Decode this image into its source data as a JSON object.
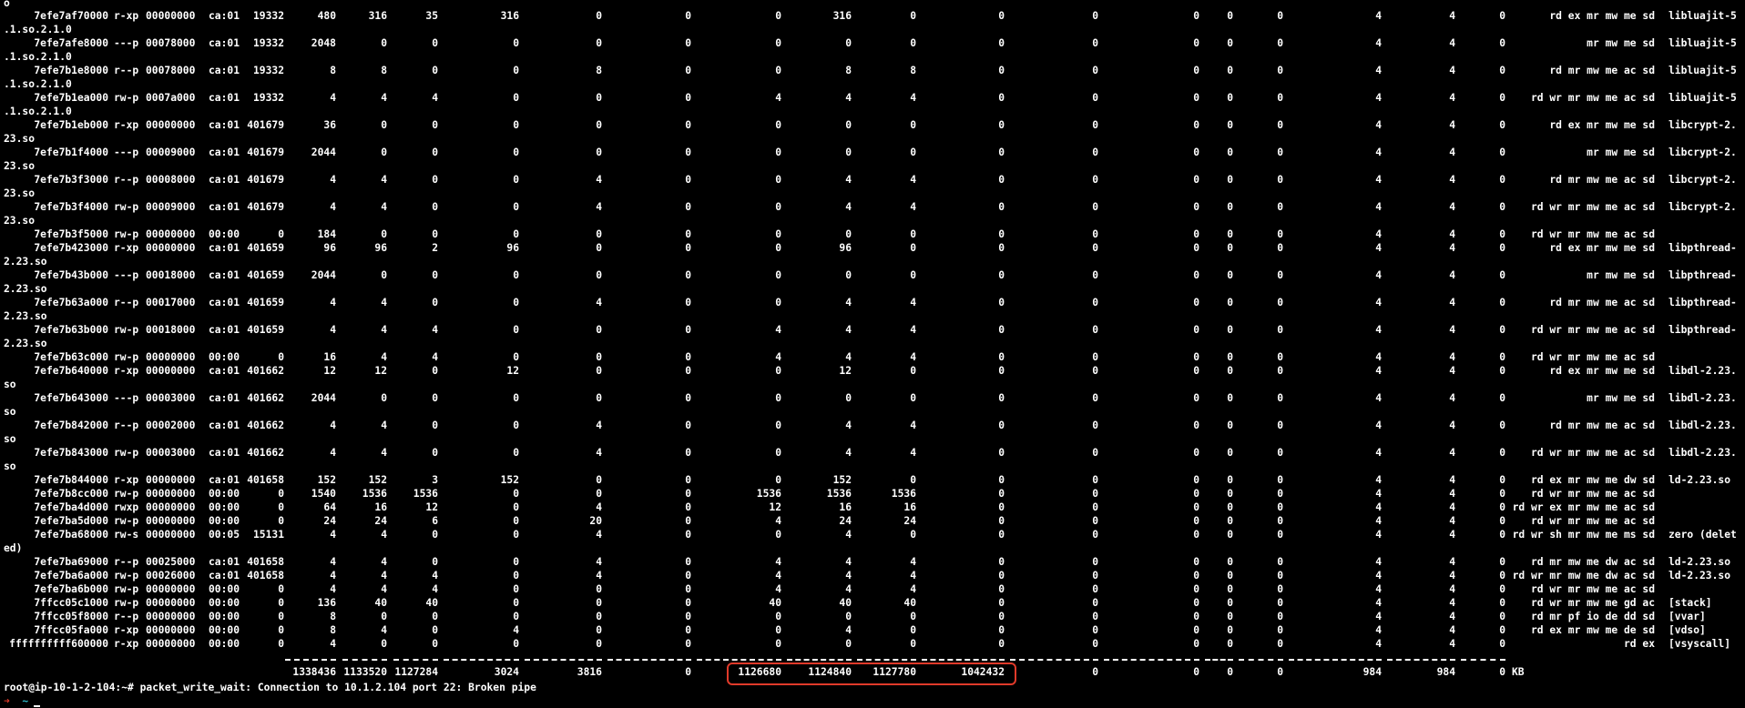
{
  "top_fragment": "o",
  "rows": [
    {
      "c": [
        "7efe7af70000",
        "r-xp",
        "00000000",
        "ca:01",
        "19332",
        "480",
        "316",
        "35",
        "316",
        "0",
        "0",
        "0",
        "316",
        "0",
        "0",
        "0",
        "0",
        "0",
        "0",
        "4",
        "4",
        "0",
        "rd ex mr mw me sd",
        "libluajit-5"
      ],
      "wrap": ".1.so.2.1.0"
    },
    {
      "c": [
        "7efe7afe8000",
        "---p",
        "00078000",
        "ca:01",
        "19332",
        "2048",
        "0",
        "0",
        "0",
        "0",
        "0",
        "0",
        "0",
        "0",
        "0",
        "0",
        "0",
        "0",
        "0",
        "4",
        "4",
        "0",
        "mr mw me sd",
        "libluajit-5"
      ],
      "wrap": ".1.so.2.1.0"
    },
    {
      "c": [
        "7efe7b1e8000",
        "r--p",
        "00078000",
        "ca:01",
        "19332",
        "8",
        "8",
        "0",
        "0",
        "8",
        "0",
        "0",
        "8",
        "8",
        "0",
        "0",
        "0",
        "0",
        "0",
        "4",
        "4",
        "0",
        "rd mr mw me ac sd",
        "libluajit-5"
      ],
      "wrap": ".1.so.2.1.0"
    },
    {
      "c": [
        "7efe7b1ea000",
        "rw-p",
        "0007a000",
        "ca:01",
        "19332",
        "4",
        "4",
        "4",
        "0",
        "0",
        "0",
        "4",
        "4",
        "4",
        "0",
        "0",
        "0",
        "0",
        "0",
        "4",
        "4",
        "0",
        "rd wr mr mw me ac sd",
        "libluajit-5"
      ],
      "wrap": ".1.so.2.1.0"
    },
    {
      "c": [
        "7efe7b1eb000",
        "r-xp",
        "00000000",
        "ca:01",
        "401679",
        "36",
        "0",
        "0",
        "0",
        "0",
        "0",
        "0",
        "0",
        "0",
        "0",
        "0",
        "0",
        "0",
        "0",
        "4",
        "4",
        "0",
        "rd ex mr mw me sd",
        "libcrypt-2."
      ],
      "wrap": "23.so"
    },
    {
      "c": [
        "7efe7b1f4000",
        "---p",
        "00009000",
        "ca:01",
        "401679",
        "2044",
        "0",
        "0",
        "0",
        "0",
        "0",
        "0",
        "0",
        "0",
        "0",
        "0",
        "0",
        "0",
        "0",
        "4",
        "4",
        "0",
        "mr mw me sd",
        "libcrypt-2."
      ],
      "wrap": "23.so"
    },
    {
      "c": [
        "7efe7b3f3000",
        "r--p",
        "00008000",
        "ca:01",
        "401679",
        "4",
        "4",
        "0",
        "0",
        "4",
        "0",
        "0",
        "4",
        "4",
        "0",
        "0",
        "0",
        "0",
        "0",
        "4",
        "4",
        "0",
        "rd mr mw me ac sd",
        "libcrypt-2."
      ],
      "wrap": "23.so"
    },
    {
      "c": [
        "7efe7b3f4000",
        "rw-p",
        "00009000",
        "ca:01",
        "401679",
        "4",
        "4",
        "0",
        "0",
        "4",
        "0",
        "0",
        "4",
        "4",
        "0",
        "0",
        "0",
        "0",
        "0",
        "4",
        "4",
        "0",
        "rd wr mr mw me ac sd",
        "libcrypt-2."
      ],
      "wrap": "23.so"
    },
    {
      "c": [
        "7efe7b3f5000",
        "rw-p",
        "00000000",
        "00:00",
        "0",
        "184",
        "0",
        "0",
        "0",
        "0",
        "0",
        "0",
        "0",
        "0",
        "0",
        "0",
        "0",
        "0",
        "0",
        "4",
        "4",
        "0",
        "rd wr mr mw me ac sd",
        ""
      ],
      "wrap": null
    },
    {
      "c": [
        "7efe7b423000",
        "r-xp",
        "00000000",
        "ca:01",
        "401659",
        "96",
        "96",
        "2",
        "96",
        "0",
        "0",
        "0",
        "96",
        "0",
        "0",
        "0",
        "0",
        "0",
        "0",
        "4",
        "4",
        "0",
        "rd ex mr mw me sd",
        "libpthread-"
      ],
      "wrap": "2.23.so"
    },
    {
      "c": [
        "7efe7b43b000",
        "---p",
        "00018000",
        "ca:01",
        "401659",
        "2044",
        "0",
        "0",
        "0",
        "0",
        "0",
        "0",
        "0",
        "0",
        "0",
        "0",
        "0",
        "0",
        "0",
        "4",
        "4",
        "0",
        "mr mw me sd",
        "libpthread-"
      ],
      "wrap": "2.23.so"
    },
    {
      "c": [
        "7efe7b63a000",
        "r--p",
        "00017000",
        "ca:01",
        "401659",
        "4",
        "4",
        "0",
        "0",
        "4",
        "0",
        "0",
        "4",
        "4",
        "0",
        "0",
        "0",
        "0",
        "0",
        "4",
        "4",
        "0",
        "rd mr mw me ac sd",
        "libpthread-"
      ],
      "wrap": "2.23.so"
    },
    {
      "c": [
        "7efe7b63b000",
        "rw-p",
        "00018000",
        "ca:01",
        "401659",
        "4",
        "4",
        "4",
        "0",
        "0",
        "0",
        "4",
        "4",
        "4",
        "0",
        "0",
        "0",
        "0",
        "0",
        "4",
        "4",
        "0",
        "rd wr mr mw me ac sd",
        "libpthread-"
      ],
      "wrap": "2.23.so"
    },
    {
      "c": [
        "7efe7b63c000",
        "rw-p",
        "00000000",
        "00:00",
        "0",
        "16",
        "4",
        "4",
        "0",
        "0",
        "0",
        "4",
        "4",
        "4",
        "0",
        "0",
        "0",
        "0",
        "0",
        "4",
        "4",
        "0",
        "rd wr mr mw me ac sd",
        ""
      ],
      "wrap": null
    },
    {
      "c": [
        "7efe7b640000",
        "r-xp",
        "00000000",
        "ca:01",
        "401662",
        "12",
        "12",
        "0",
        "12",
        "0",
        "0",
        "0",
        "12",
        "0",
        "0",
        "0",
        "0",
        "0",
        "0",
        "4",
        "4",
        "0",
        "rd ex mr mw me sd",
        "libdl-2.23."
      ],
      "wrap": "so"
    },
    {
      "c": [
        "7efe7b643000",
        "---p",
        "00003000",
        "ca:01",
        "401662",
        "2044",
        "0",
        "0",
        "0",
        "0",
        "0",
        "0",
        "0",
        "0",
        "0",
        "0",
        "0",
        "0",
        "0",
        "4",
        "4",
        "0",
        "mr mw me sd",
        "libdl-2.23."
      ],
      "wrap": "so"
    },
    {
      "c": [
        "7efe7b842000",
        "r--p",
        "00002000",
        "ca:01",
        "401662",
        "4",
        "4",
        "0",
        "0",
        "4",
        "0",
        "0",
        "4",
        "4",
        "0",
        "0",
        "0",
        "0",
        "0",
        "4",
        "4",
        "0",
        "rd mr mw me ac sd",
        "libdl-2.23."
      ],
      "wrap": "so"
    },
    {
      "c": [
        "7efe7b843000",
        "rw-p",
        "00003000",
        "ca:01",
        "401662",
        "4",
        "4",
        "0",
        "0",
        "4",
        "0",
        "0",
        "4",
        "4",
        "0",
        "0",
        "0",
        "0",
        "0",
        "4",
        "4",
        "0",
        "rd wr mr mw me ac sd",
        "libdl-2.23."
      ],
      "wrap": "so"
    },
    {
      "c": [
        "7efe7b844000",
        "r-xp",
        "00000000",
        "ca:01",
        "401658",
        "152",
        "152",
        "3",
        "152",
        "0",
        "0",
        "0",
        "152",
        "0",
        "0",
        "0",
        "0",
        "0",
        "0",
        "4",
        "4",
        "0",
        "rd ex mr mw me dw sd",
        "ld-2.23.so"
      ],
      "wrap": null
    },
    {
      "c": [
        "7efe7b8cc000",
        "rw-p",
        "00000000",
        "00:00",
        "0",
        "1540",
        "1536",
        "1536",
        "0",
        "0",
        "0",
        "1536",
        "1536",
        "1536",
        "0",
        "0",
        "0",
        "0",
        "0",
        "4",
        "4",
        "0",
        "rd wr mr mw me ac sd",
        ""
      ],
      "wrap": null
    },
    {
      "c": [
        "7efe7ba4d000",
        "rwxp",
        "00000000",
        "00:00",
        "0",
        "64",
        "16",
        "12",
        "0",
        "4",
        "0",
        "12",
        "16",
        "16",
        "0",
        "0",
        "0",
        "0",
        "0",
        "4",
        "4",
        "0",
        "rd wr ex mr mw me ac sd",
        ""
      ],
      "wrap": null
    },
    {
      "c": [
        "7efe7ba5d000",
        "rw-p",
        "00000000",
        "00:00",
        "0",
        "24",
        "24",
        "6",
        "0",
        "20",
        "0",
        "4",
        "24",
        "24",
        "0",
        "0",
        "0",
        "0",
        "0",
        "4",
        "4",
        "0",
        "rd wr mr mw me ac sd",
        ""
      ],
      "wrap": null
    },
    {
      "c": [
        "7efe7ba68000",
        "rw-s",
        "00000000",
        "00:05",
        "15131",
        "4",
        "4",
        "0",
        "0",
        "4",
        "0",
        "0",
        "4",
        "0",
        "0",
        "0",
        "0",
        "0",
        "0",
        "4",
        "4",
        "0",
        "rd wr sh mr mw me ms sd",
        "zero (delet"
      ],
      "wrap": "ed)"
    },
    {
      "c": [
        "7efe7ba69000",
        "r--p",
        "00025000",
        "ca:01",
        "401658",
        "4",
        "4",
        "0",
        "0",
        "4",
        "0",
        "4",
        "4",
        "4",
        "0",
        "0",
        "0",
        "0",
        "0",
        "4",
        "4",
        "0",
        "rd mr mw me dw ac sd",
        "ld-2.23.so"
      ],
      "wrap": null
    },
    {
      "c": [
        "7efe7ba6a000",
        "rw-p",
        "00026000",
        "ca:01",
        "401658",
        "4",
        "4",
        "4",
        "0",
        "4",
        "0",
        "4",
        "4",
        "4",
        "0",
        "0",
        "0",
        "0",
        "0",
        "4",
        "4",
        "0",
        "rd wr mr mw me dw ac sd",
        "ld-2.23.so"
      ],
      "wrap": null
    },
    {
      "c": [
        "7efe7ba6b000",
        "rw-p",
        "00000000",
        "00:00",
        "0",
        "4",
        "4",
        "4",
        "0",
        "0",
        "0",
        "4",
        "4",
        "4",
        "0",
        "0",
        "0",
        "0",
        "0",
        "4",
        "4",
        "0",
        "rd wr mr mw me ac sd",
        ""
      ],
      "wrap": null
    },
    {
      "c": [
        "7ffcc05c1000",
        "rw-p",
        "00000000",
        "00:00",
        "0",
        "136",
        "40",
        "40",
        "0",
        "0",
        "0",
        "40",
        "40",
        "40",
        "0",
        "0",
        "0",
        "0",
        "0",
        "4",
        "4",
        "0",
        "rd wr mr mw me gd ac",
        "[stack]"
      ],
      "wrap": null
    },
    {
      "c": [
        "7ffcc05f8000",
        "r--p",
        "00000000",
        "00:00",
        "0",
        "8",
        "0",
        "0",
        "0",
        "0",
        "0",
        "0",
        "0",
        "0",
        "0",
        "0",
        "0",
        "0",
        "0",
        "4",
        "4",
        "0",
        "rd mr pf io de dd sd",
        "[vvar]"
      ],
      "wrap": null
    },
    {
      "c": [
        "7ffcc05fa000",
        "r-xp",
        "00000000",
        "00:00",
        "0",
        "8",
        "4",
        "0",
        "4",
        "0",
        "0",
        "0",
        "4",
        "0",
        "0",
        "0",
        "0",
        "0",
        "0",
        "4",
        "4",
        "0",
        "rd ex mr mw me de sd",
        "[vdso]"
      ],
      "wrap": null
    },
    {
      "c": [
        "ffffffffff600000",
        "r-xp",
        "00000000",
        "00:00",
        "0",
        "4",
        "0",
        "0",
        "0",
        "0",
        "0",
        "0",
        "0",
        "0",
        "0",
        "0",
        "0",
        "0",
        "0",
        "4",
        "4",
        "0",
        "rd ex",
        "[vsyscall]"
      ],
      "wrap": null
    }
  ],
  "totals": [
    "1338436",
    "1133520",
    "1127284",
    "3024",
    "3816",
    "0",
    "1126680",
    "1124840",
    "1127780",
    "1042432",
    "0",
    "0",
    "0",
    "0",
    "984",
    "984",
    "0",
    "KB"
  ],
  "prompt": "root@ip-10-1-2-104:~# packet_write_wait: Connection to 10.1.2.104 port 22: Broken pipe",
  "prompt_arrow": "➜",
  "prompt_tilde": "~",
  "colors": {
    "background": "#000000",
    "text": "#ffffff",
    "highlight_box": "#e03a2a",
    "prompt_arrow": "#e03a2a",
    "prompt_tilde": "#2fb8c8"
  }
}
